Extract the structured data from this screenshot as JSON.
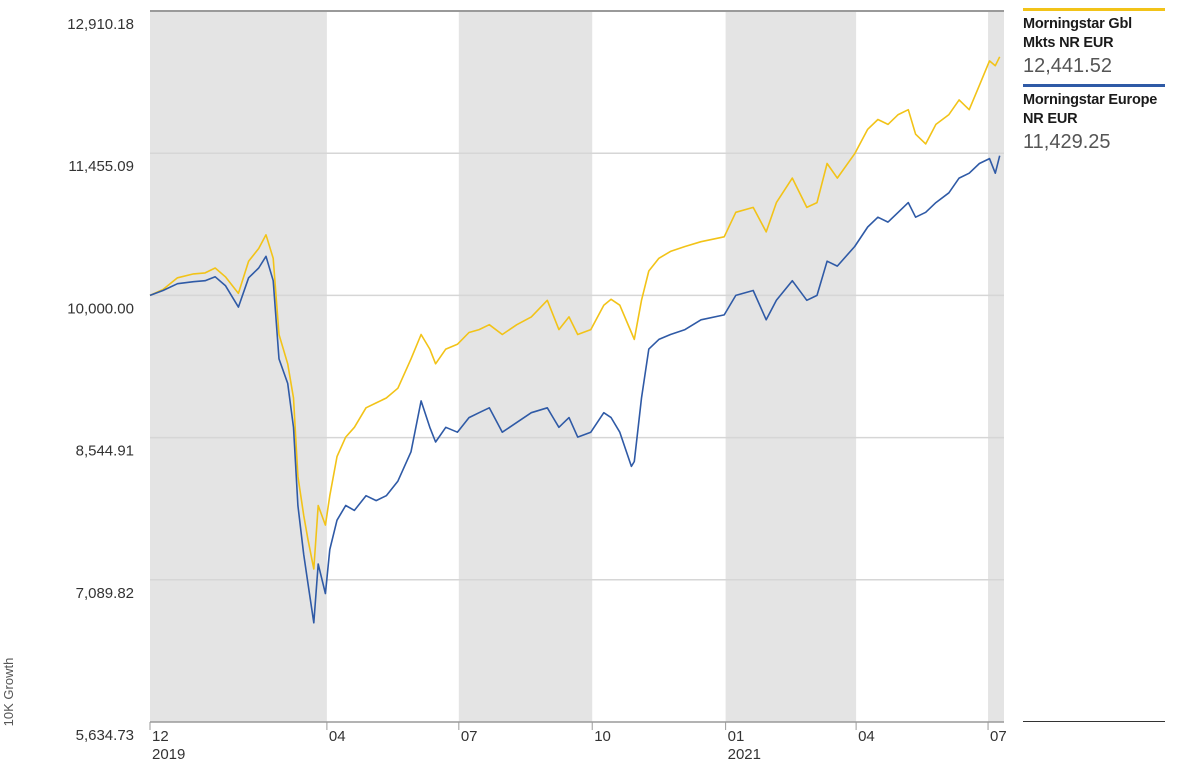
{
  "chart_data": {
    "type": "line",
    "ylabel": "10K Growth",
    "y_ticks": [
      "12,910.18",
      "11,455.09",
      "10,000.00",
      "8,544.91",
      "7,089.82",
      "5,634.73"
    ],
    "ylim": [
      5634.73,
      12910.18
    ],
    "x_ticks": [
      {
        "month": "12",
        "year": "2019",
        "date": "2019-12-01"
      },
      {
        "month": "04",
        "year": "",
        "date": "2020-04-01"
      },
      {
        "month": "07",
        "year": "",
        "date": "2020-07-01"
      },
      {
        "month": "10",
        "year": "",
        "date": "2020-10-01"
      },
      {
        "month": "01",
        "year": "2021",
        "date": "2021-01-01"
      },
      {
        "month": "04",
        "year": "",
        "date": "2021-04-01"
      },
      {
        "month": "07",
        "year": "",
        "date": "2021-07-01"
      }
    ],
    "xlim": [
      "2019-12-01",
      "2021-07-12"
    ],
    "shaded_bands": [
      [
        "2019-12-01",
        "2020-04-01"
      ],
      [
        "2020-07-01",
        "2020-10-01"
      ],
      [
        "2021-01-01",
        "2021-04-01"
      ],
      [
        "2021-07-01",
        "2021-07-12"
      ]
    ],
    "grid": true,
    "legend_position": "right",
    "series": [
      {
        "name": "Morningstar Gbl Mkts NR EUR",
        "last_value": "12,441.52",
        "color": "#f2c318",
        "points": [
          [
            "2019-12-01",
            10000
          ],
          [
            "2019-12-10",
            10060
          ],
          [
            "2019-12-20",
            10180
          ],
          [
            "2019-12-31",
            10220
          ],
          [
            "2020-01-08",
            10230
          ],
          [
            "2020-01-15",
            10280
          ],
          [
            "2020-01-22",
            10190
          ],
          [
            "2020-01-31",
            10020
          ],
          [
            "2020-02-07",
            10350
          ],
          [
            "2020-02-14",
            10480
          ],
          [
            "2020-02-19",
            10620
          ],
          [
            "2020-02-24",
            10380
          ],
          [
            "2020-02-28",
            9600
          ],
          [
            "2020-03-05",
            9300
          ],
          [
            "2020-03-09",
            8950
          ],
          [
            "2020-03-12",
            8150
          ],
          [
            "2020-03-16",
            7750
          ],
          [
            "2020-03-19",
            7500
          ],
          [
            "2020-03-23",
            7200
          ],
          [
            "2020-03-26",
            7850
          ],
          [
            "2020-03-31",
            7650
          ],
          [
            "2020-04-03",
            7950
          ],
          [
            "2020-04-08",
            8350
          ],
          [
            "2020-04-14",
            8550
          ],
          [
            "2020-04-20",
            8650
          ],
          [
            "2020-04-28",
            8850
          ],
          [
            "2020-05-05",
            8900
          ],
          [
            "2020-05-12",
            8950
          ],
          [
            "2020-05-20",
            9050
          ],
          [
            "2020-05-29",
            9350
          ],
          [
            "2020-06-05",
            9600
          ],
          [
            "2020-06-11",
            9450
          ],
          [
            "2020-06-15",
            9300
          ],
          [
            "2020-06-22",
            9450
          ],
          [
            "2020-06-30",
            9500
          ],
          [
            "2020-07-08",
            9620
          ],
          [
            "2020-07-15",
            9650
          ],
          [
            "2020-07-22",
            9700
          ],
          [
            "2020-07-31",
            9600
          ],
          [
            "2020-08-10",
            9700
          ],
          [
            "2020-08-20",
            9780
          ],
          [
            "2020-08-31",
            9950
          ],
          [
            "2020-09-04",
            9800
          ],
          [
            "2020-09-08",
            9650
          ],
          [
            "2020-09-15",
            9780
          ],
          [
            "2020-09-21",
            9600
          ],
          [
            "2020-09-30",
            9650
          ],
          [
            "2020-10-09",
            9900
          ],
          [
            "2020-10-14",
            9960
          ],
          [
            "2020-10-20",
            9900
          ],
          [
            "2020-10-28",
            9620
          ],
          [
            "2020-10-30",
            9550
          ],
          [
            "2020-11-04",
            9950
          ],
          [
            "2020-11-09",
            10250
          ],
          [
            "2020-11-16",
            10380
          ],
          [
            "2020-11-24",
            10450
          ],
          [
            "2020-12-04",
            10500
          ],
          [
            "2020-12-15",
            10550
          ],
          [
            "2020-12-31",
            10600
          ],
          [
            "2021-01-08",
            10850
          ],
          [
            "2021-01-20",
            10900
          ],
          [
            "2021-01-29",
            10650
          ],
          [
            "2021-02-05",
            10950
          ],
          [
            "2021-02-16",
            11200
          ],
          [
            "2021-02-26",
            10900
          ],
          [
            "2021-03-05",
            10950
          ],
          [
            "2021-03-12",
            11350
          ],
          [
            "2021-03-19",
            11200
          ],
          [
            "2021-03-31",
            11450
          ],
          [
            "2021-04-09",
            11700
          ],
          [
            "2021-04-16",
            11800
          ],
          [
            "2021-04-23",
            11750
          ],
          [
            "2021-04-30",
            11850
          ],
          [
            "2021-05-07",
            11900
          ],
          [
            "2021-05-12",
            11650
          ],
          [
            "2021-05-19",
            11550
          ],
          [
            "2021-05-26",
            11750
          ],
          [
            "2021-06-04",
            11850
          ],
          [
            "2021-06-11",
            12000
          ],
          [
            "2021-06-18",
            11900
          ],
          [
            "2021-06-25",
            12150
          ],
          [
            "2021-07-02",
            12400
          ],
          [
            "2021-07-06",
            12350
          ],
          [
            "2021-07-09",
            12441.52
          ]
        ]
      },
      {
        "name": "Morningstar Europe NR EUR",
        "last_value": "11,429.25",
        "color": "#2f5aa6",
        "points": [
          [
            "2019-12-01",
            10000
          ],
          [
            "2019-12-10",
            10050
          ],
          [
            "2019-12-20",
            10120
          ],
          [
            "2019-12-31",
            10140
          ],
          [
            "2020-01-08",
            10150
          ],
          [
            "2020-01-15",
            10190
          ],
          [
            "2020-01-22",
            10100
          ],
          [
            "2020-01-31",
            9880
          ],
          [
            "2020-02-07",
            10180
          ],
          [
            "2020-02-14",
            10280
          ],
          [
            "2020-02-19",
            10400
          ],
          [
            "2020-02-24",
            10150
          ],
          [
            "2020-02-28",
            9350
          ],
          [
            "2020-03-05",
            9100
          ],
          [
            "2020-03-09",
            8650
          ],
          [
            "2020-03-12",
            7850
          ],
          [
            "2020-03-16",
            7350
          ],
          [
            "2020-03-19",
            7050
          ],
          [
            "2020-03-23",
            6650
          ],
          [
            "2020-03-26",
            7250
          ],
          [
            "2020-03-31",
            6950
          ],
          [
            "2020-04-03",
            7400
          ],
          [
            "2020-04-08",
            7700
          ],
          [
            "2020-04-14",
            7850
          ],
          [
            "2020-04-20",
            7800
          ],
          [
            "2020-04-28",
            7950
          ],
          [
            "2020-05-05",
            7900
          ],
          [
            "2020-05-12",
            7950
          ],
          [
            "2020-05-20",
            8100
          ],
          [
            "2020-05-29",
            8400
          ],
          [
            "2020-06-05",
            8920
          ],
          [
            "2020-06-11",
            8650
          ],
          [
            "2020-06-15",
            8500
          ],
          [
            "2020-06-22",
            8650
          ],
          [
            "2020-06-30",
            8600
          ],
          [
            "2020-07-08",
            8750
          ],
          [
            "2020-07-15",
            8800
          ],
          [
            "2020-07-22",
            8850
          ],
          [
            "2020-07-31",
            8600
          ],
          [
            "2020-08-10",
            8700
          ],
          [
            "2020-08-20",
            8800
          ],
          [
            "2020-08-31",
            8850
          ],
          [
            "2020-09-04",
            8750
          ],
          [
            "2020-09-08",
            8650
          ],
          [
            "2020-09-15",
            8750
          ],
          [
            "2020-09-21",
            8550
          ],
          [
            "2020-09-30",
            8600
          ],
          [
            "2020-10-09",
            8800
          ],
          [
            "2020-10-14",
            8750
          ],
          [
            "2020-10-20",
            8600
          ],
          [
            "2020-10-28",
            8250
          ],
          [
            "2020-10-30",
            8300
          ],
          [
            "2020-11-04",
            8950
          ],
          [
            "2020-11-09",
            9450
          ],
          [
            "2020-11-16",
            9550
          ],
          [
            "2020-11-24",
            9600
          ],
          [
            "2020-12-04",
            9650
          ],
          [
            "2020-12-15",
            9750
          ],
          [
            "2020-12-31",
            9800
          ],
          [
            "2021-01-08",
            10000
          ],
          [
            "2021-01-20",
            10050
          ],
          [
            "2021-01-29",
            9750
          ],
          [
            "2021-02-05",
            9950
          ],
          [
            "2021-02-16",
            10150
          ],
          [
            "2021-02-26",
            9950
          ],
          [
            "2021-03-05",
            10000
          ],
          [
            "2021-03-12",
            10350
          ],
          [
            "2021-03-19",
            10300
          ],
          [
            "2021-03-31",
            10500
          ],
          [
            "2021-04-09",
            10700
          ],
          [
            "2021-04-16",
            10800
          ],
          [
            "2021-04-23",
            10750
          ],
          [
            "2021-04-30",
            10850
          ],
          [
            "2021-05-07",
            10950
          ],
          [
            "2021-05-12",
            10800
          ],
          [
            "2021-05-19",
            10850
          ],
          [
            "2021-05-26",
            10950
          ],
          [
            "2021-06-04",
            11050
          ],
          [
            "2021-06-11",
            11200
          ],
          [
            "2021-06-18",
            11250
          ],
          [
            "2021-06-25",
            11350
          ],
          [
            "2021-07-02",
            11400
          ],
          [
            "2021-07-06",
            11250
          ],
          [
            "2021-07-09",
            11429.25
          ]
        ]
      }
    ]
  }
}
